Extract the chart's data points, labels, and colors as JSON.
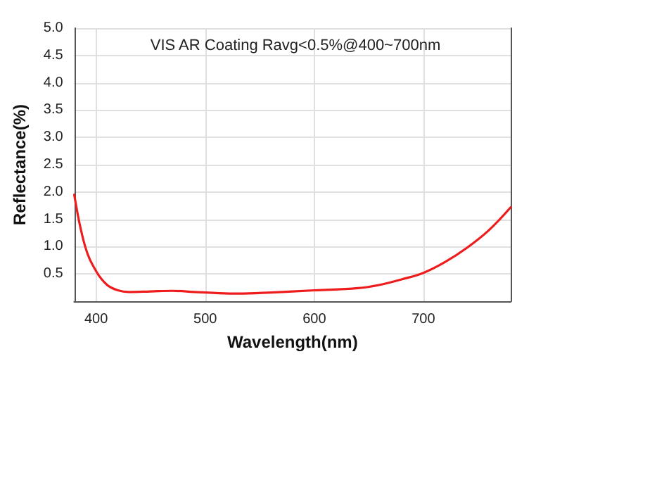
{
  "chart_data": {
    "type": "line",
    "title": "VIS AR Coating Ravg<0.5%@400~700nm",
    "xlabel": "Wavelength(nm)",
    "ylabel": "Reflectance(%)",
    "x": [
      380,
      390,
      400,
      410,
      420,
      430,
      450,
      470,
      490,
      510,
      530,
      560,
      600,
      640,
      660,
      680,
      700,
      720,
      740,
      760,
      780
    ],
    "series": [
      {
        "color": "#ee1c1c",
        "values": [
          1.95,
          1.0,
          0.55,
          0.3,
          0.2,
          0.17,
          0.18,
          0.19,
          0.17,
          0.15,
          0.14,
          0.16,
          0.2,
          0.24,
          0.3,
          0.4,
          0.52,
          0.72,
          0.98,
          1.3,
          1.72
        ]
      }
    ],
    "xlim": [
      380,
      780
    ],
    "xticks": [
      400,
      500,
      600,
      700
    ],
    "ylim": [
      0,
      5
    ],
    "yticks": [
      {
        "value": 0,
        "label": null
      },
      {
        "value": 0.5,
        "label": "0.5"
      },
      {
        "value": 1,
        "label": "1.0"
      },
      {
        "value": 1.5,
        "label": "1.5"
      },
      {
        "value": 2,
        "label": "2.0"
      },
      {
        "value": 2.5,
        "label": "2.5"
      },
      {
        "value": 3,
        "label": "3.0"
      },
      {
        "value": 3.5,
        "label": "3.5"
      },
      {
        "value": 4,
        "label": "4.0"
      },
      {
        "value": 4.5,
        "label": "4.5"
      },
      {
        "value": 5,
        "label": "5.0"
      }
    ],
    "grid": true,
    "marker": "none",
    "line_style": "solid"
  }
}
